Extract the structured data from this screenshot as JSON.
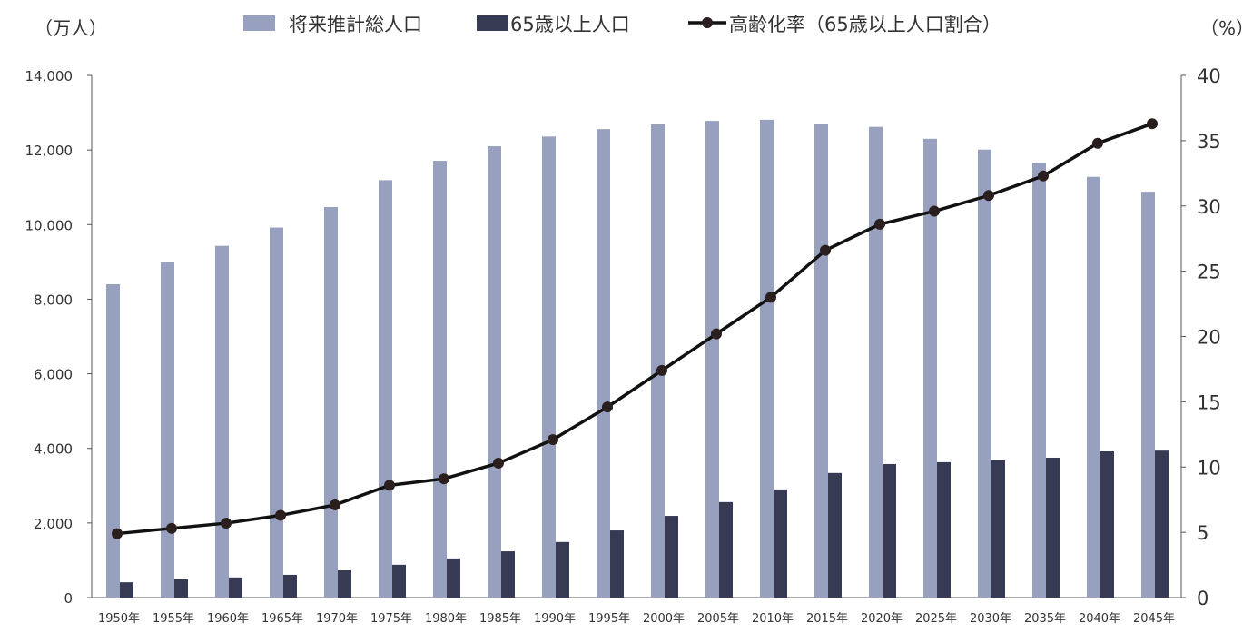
{
  "chart_data": {
    "type": "bar",
    "left_unit_label": "（万人）",
    "right_unit_label": "（%）",
    "categories": [
      "1950年",
      "1955年",
      "1960年",
      "1965年",
      "1970年",
      "1975年",
      "1980年",
      "1985年",
      "1990年",
      "1995年",
      "2000年",
      "2005年",
      "2010年",
      "2015年",
      "2020年",
      "2025年",
      "2030年",
      "2035年",
      "2040年",
      "2045年"
    ],
    "series": [
      {
        "name": "将来推計総人口",
        "type": "bar",
        "axis": "left",
        "color": "#97a0be",
        "values": [
          8400,
          9000,
          9430,
          9920,
          10470,
          11190,
          11710,
          12100,
          12360,
          12560,
          12690,
          12780,
          12810,
          12710,
          12620,
          12300,
          12010,
          11660,
          11280,
          10880
        ]
      },
      {
        "name": "65歳以上人口",
        "type": "bar",
        "axis": "left",
        "color": "#363a52",
        "values": [
          410,
          490,
          540,
          610,
          730,
          880,
          1050,
          1240,
          1490,
          1800,
          2190,
          2560,
          2900,
          3340,
          3580,
          3630,
          3680,
          3750,
          3920,
          3940
        ]
      },
      {
        "name": "高齢化率（65歳以上人口割合）",
        "type": "line",
        "axis": "right",
        "color": "#111111",
        "values": [
          4.9,
          5.3,
          5.7,
          6.3,
          7.1,
          8.6,
          9.1,
          10.3,
          12.1,
          14.6,
          17.4,
          20.2,
          23.0,
          26.6,
          28.6,
          29.6,
          30.8,
          32.3,
          34.8,
          36.3
        ]
      }
    ],
    "left_axis": {
      "ylim": [
        0,
        14000
      ],
      "ticks": [
        "0",
        "2,000",
        "4,000",
        "6,000",
        "8,000",
        "10,000",
        "12,000",
        "14,000"
      ]
    },
    "right_axis": {
      "ylim": [
        0,
        40
      ],
      "ticks": [
        "0",
        "5",
        "10",
        "15",
        "20",
        "25",
        "30",
        "35",
        "40"
      ]
    },
    "grid": false,
    "legend_position": "top"
  }
}
